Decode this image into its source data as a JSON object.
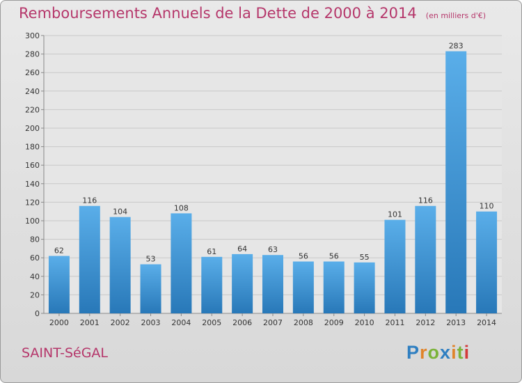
{
  "header": {
    "title": "Remboursements Annuels de la Dette de 2000 à 2014",
    "unit": "(en milliers d'€)"
  },
  "footer": {
    "commune": "SAINT-SéGAL",
    "logo": "Proxiti"
  },
  "colors": {
    "bar_top": "#5aaee9",
    "bar_bottom": "#2878b8",
    "title": "#b5366a"
  },
  "chart_data": {
    "type": "bar",
    "title": "Remboursements Annuels de la Dette de 2000 à 2014",
    "xlabel": "",
    "ylabel": "",
    "categories": [
      "2000",
      "2001",
      "2002",
      "2003",
      "2004",
      "2005",
      "2006",
      "2007",
      "2008",
      "2009",
      "2010",
      "2011",
      "2012",
      "2013",
      "2014"
    ],
    "values": [
      62,
      116,
      104,
      53,
      108,
      61,
      64,
      63,
      56,
      56,
      55,
      101,
      116,
      283,
      110
    ],
    "ylim": [
      0,
      300
    ],
    "yticks": [
      0,
      20,
      40,
      60,
      80,
      100,
      120,
      140,
      160,
      180,
      200,
      220,
      240,
      260,
      280,
      300
    ],
    "grid": true,
    "legend": "none"
  }
}
